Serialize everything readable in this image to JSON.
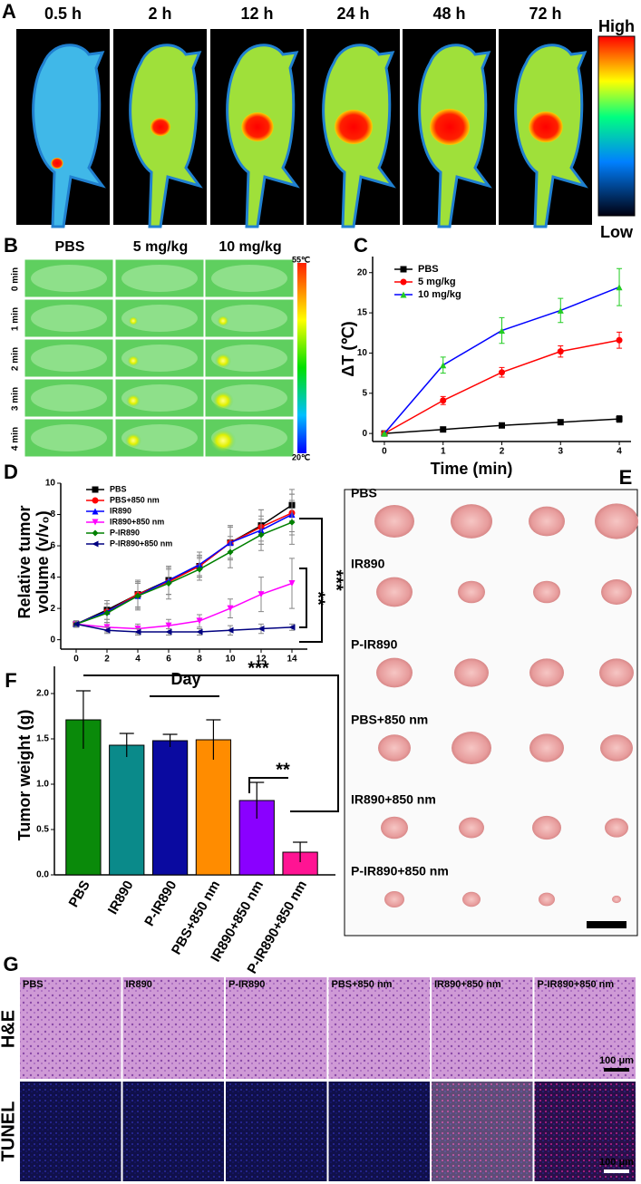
{
  "panel_a": {
    "letter": "A",
    "times": [
      "0.5 h",
      "2 h",
      "12 h",
      "24 h",
      "48 h",
      "72 h"
    ],
    "colorbar": {
      "high": "High",
      "low": "Low"
    }
  },
  "panel_b": {
    "letter": "B",
    "columns": [
      "PBS",
      "5 mg/kg",
      "10 mg/kg"
    ],
    "rows": [
      "0 min",
      "1 min",
      "2 min",
      "3 min",
      "4 min"
    ],
    "colorbar": {
      "max": "55℃",
      "min": "20℃"
    }
  },
  "panel_e": {
    "letter": "E",
    "groups": [
      "PBS",
      "IR890",
      "P-IR890",
      "PBS+850 nm",
      "IR890+850 nm",
      "P-IR890+850 nm"
    ]
  },
  "panel_g": {
    "letter": "G",
    "rows": [
      "H&E",
      "TUNEL"
    ],
    "groups": [
      "PBS",
      "IR890",
      "P-IR890",
      "PBS+850 nm",
      "IR890+850 nm",
      "P-IR890+850 nm"
    ],
    "scale_bar": "100 μm"
  },
  "chart_data": [
    {
      "type": "line",
      "panel": "C",
      "xlabel": "Time (min)",
      "ylabel": [
        "ΔT (℃)"
      ],
      "x": [
        0,
        1,
        2,
        3,
        4
      ],
      "xlim": [
        -0.2,
        4.2
      ],
      "xticks": [
        0,
        1,
        2,
        3,
        4
      ],
      "ylim": [
        -1,
        22
      ],
      "yticks": [
        0,
        5,
        10,
        15,
        20
      ],
      "legend": "upper left",
      "series": [
        {
          "name": "PBS",
          "color": "#000000",
          "marker": "square",
          "values": [
            0,
            0.5,
            1.0,
            1.4,
            1.8
          ],
          "errors": [
            0,
            0.1,
            0.2,
            0.3,
            0.4
          ]
        },
        {
          "name": "5 mg/kg",
          "color": "#ff0000",
          "marker": "circle",
          "values": [
            0,
            4.1,
            7.6,
            10.2,
            11.6
          ],
          "errors": [
            0,
            0.5,
            0.6,
            0.7,
            1.0
          ]
        },
        {
          "name": "10 mg/kg",
          "color": "#0000ff",
          "marker_color": "#22cc22",
          "marker": "triangle",
          "values": [
            0,
            8.5,
            12.8,
            15.3,
            18.2
          ],
          "errors": [
            0,
            1.0,
            1.6,
            1.5,
            2.3
          ]
        }
      ]
    },
    {
      "type": "line",
      "panel": "D",
      "xlabel": "Day",
      "ylabel": [
        "Relative tumor",
        "volume (v/v₀)"
      ],
      "x": [
        0,
        2,
        4,
        6,
        8,
        10,
        12,
        14
      ],
      "xlim": [
        -1,
        15
      ],
      "xticks": [
        0,
        2,
        4,
        6,
        8,
        10,
        12,
        14
      ],
      "ylim": [
        -0.6,
        10
      ],
      "yticks": [
        0,
        2,
        4,
        6,
        8,
        10
      ],
      "legend": "upper left",
      "annotations": [
        "***",
        "**"
      ],
      "series": [
        {
          "name": "PBS",
          "color": "#000000",
          "marker": "square",
          "values": [
            1,
            1.9,
            2.9,
            3.8,
            4.7,
            6.2,
            7.3,
            8.6
          ],
          "errors": [
            0.2,
            0.6,
            0.9,
            0.9,
            0.7,
            1.1,
            1.0,
            1.0
          ]
        },
        {
          "name": "PBS+850 nm",
          "color": "#ff0000",
          "marker": "circle",
          "values": [
            1,
            1.8,
            2.9,
            3.7,
            4.7,
            6.2,
            7.2,
            8.1
          ],
          "errors": [
            0.2,
            0.5,
            0.8,
            0.8,
            0.6,
            1.0,
            1.1,
            1.2
          ]
        },
        {
          "name": "IR890",
          "color": "#0000ff",
          "marker": "triangle",
          "values": [
            1,
            1.8,
            2.8,
            3.8,
            4.8,
            6.2,
            7.0,
            8.0
          ],
          "errors": [
            0.2,
            0.7,
            0.8,
            0.9,
            0.8,
            1.0,
            0.9,
            1.3
          ]
        },
        {
          "name": "IR890+850 nm",
          "color": "#ff00ff",
          "marker": "triangle-down",
          "values": [
            1,
            0.8,
            0.7,
            0.9,
            1.2,
            2.0,
            2.9,
            3.6
          ],
          "errors": [
            0.2,
            0.3,
            0.3,
            0.4,
            0.4,
            0.6,
            1.1,
            1.6
          ]
        },
        {
          "name": "P-IR890",
          "color": "#008000",
          "marker": "diamond",
          "values": [
            1,
            1.7,
            2.8,
            3.6,
            4.5,
            5.6,
            6.7,
            7.5
          ],
          "errors": [
            0.2,
            0.6,
            0.9,
            1.0,
            0.7,
            1.0,
            1.0,
            1.4
          ]
        },
        {
          "name": "P-IR890+850 nm",
          "color": "#000080",
          "marker": "triangle-left",
          "values": [
            1,
            0.6,
            0.5,
            0.5,
            0.5,
            0.6,
            0.7,
            0.8
          ],
          "errors": [
            0.2,
            0.2,
            0.2,
            0.2,
            0.2,
            0.3,
            0.3,
            0.2
          ]
        }
      ]
    },
    {
      "type": "bar",
      "panel": "F",
      "ylabel": [
        "Tumor weight (g)"
      ],
      "categories": [
        "PBS",
        "IR890",
        "P-IR890",
        "PBS+850 nm",
        "IR890+850 nm",
        "P-IR890+850 nm"
      ],
      "values": [
        1.71,
        1.43,
        1.48,
        1.49,
        0.82,
        0.25
      ],
      "errors": [
        0.32,
        0.13,
        0.07,
        0.22,
        0.2,
        0.11
      ],
      "colors": [
        "#0a8a0a",
        "#0a8a8a",
        "#0a0aa0",
        "#ff8c00",
        "#8a00ff",
        "#ff1493"
      ],
      "ylim": [
        0,
        2.3
      ],
      "yticks": [
        {
          "value": 0,
          "label": "0.0"
        },
        0.5,
        {
          "value": 1,
          "label": "1.0"
        },
        1.5,
        {
          "value": 2,
          "label": "2.0"
        }
      ],
      "annotations": [
        "***",
        "**"
      ]
    }
  ]
}
